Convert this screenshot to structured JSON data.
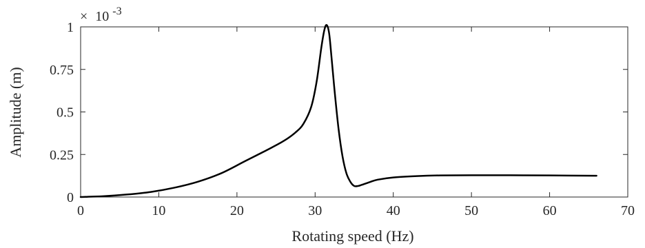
{
  "chart_data": {
    "type": "line",
    "title": "",
    "xlabel": "Rotating speed (Hz)",
    "ylabel": "Amplitude (m)",
    "y_multiplier": {
      "times": "×",
      "base": "10",
      "exponent": "-3"
    },
    "xlim": [
      0,
      70
    ],
    "ylim": [
      0,
      1.0
    ],
    "xticks": [
      0,
      10,
      20,
      30,
      40,
      50,
      60,
      70
    ],
    "xtick_labels": [
      "0",
      "10",
      "20",
      "30",
      "40",
      "50",
      "60",
      "70"
    ],
    "yticks": [
      0,
      0.25,
      0.5,
      0.75,
      1.0
    ],
    "ytick_labels": [
      "0",
      "0.25",
      "0.5",
      "0.75",
      "1"
    ],
    "grid": false,
    "line_color": "#000000",
    "series": [
      {
        "x": [
          0,
          3,
          6,
          9,
          12,
          15,
          18,
          21,
          24,
          26,
          27.5,
          28.5,
          29.5,
          30.2,
          30.8,
          31.2,
          31.5,
          31.8,
          32.1,
          32.5,
          33,
          33.5,
          34,
          34.5,
          35,
          35.5,
          36,
          37,
          38,
          40,
          43,
          46,
          50,
          55,
          60,
          66
        ],
        "y": [
          0,
          0.005,
          0.015,
          0.03,
          0.055,
          0.09,
          0.14,
          0.21,
          0.28,
          0.33,
          0.38,
          0.43,
          0.53,
          0.68,
          0.88,
          0.985,
          1.01,
          0.96,
          0.82,
          0.62,
          0.4,
          0.24,
          0.14,
          0.09,
          0.065,
          0.065,
          0.072,
          0.088,
          0.102,
          0.115,
          0.123,
          0.127,
          0.128,
          0.128,
          0.127,
          0.125
        ]
      }
    ]
  }
}
